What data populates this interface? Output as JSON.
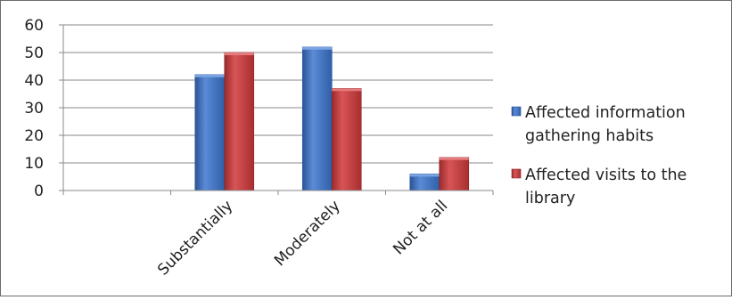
{
  "chart_data": {
    "type": "bar",
    "title": "",
    "xlabel": "",
    "ylabel": "",
    "categories": [
      "",
      "Substantially",
      "Moderately",
      "Not at all"
    ],
    "series": [
      {
        "name": "Affected information gathering habits",
        "color": "#3c6fc1",
        "values": [
          null,
          42,
          52,
          6
        ]
      },
      {
        "name": "Affected visits to the library",
        "color": "#c0393a",
        "values": [
          null,
          50,
          37,
          12
        ]
      }
    ],
    "ylim": [
      0,
      60
    ],
    "yticks": [
      0,
      10,
      20,
      30,
      40,
      50,
      60
    ],
    "grid": true,
    "legend_position": "right",
    "legend": [
      {
        "lines": [
          "Affected information",
          "gathering habits"
        ]
      },
      {
        "lines": [
          "Affected visits to the",
          "library"
        ]
      }
    ]
  }
}
